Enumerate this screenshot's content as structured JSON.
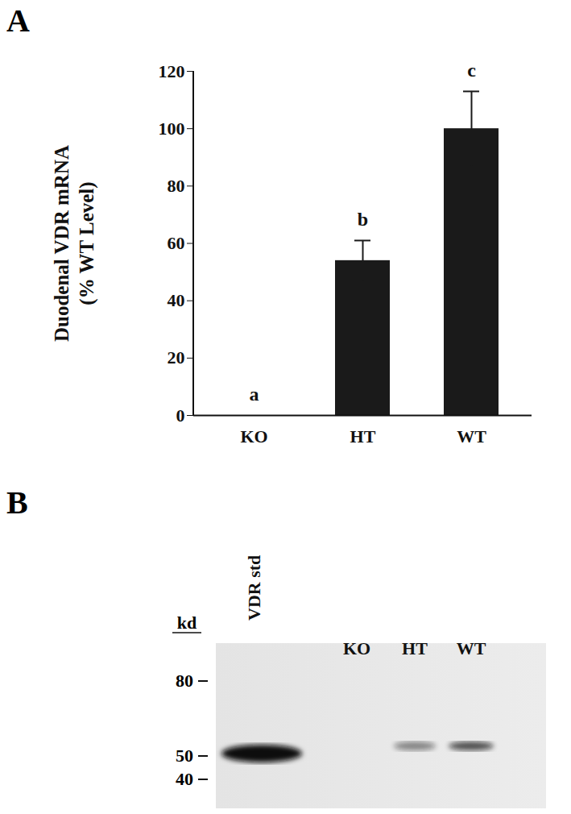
{
  "panel_labels": [
    "A",
    "B"
  ],
  "chart_data": {
    "type": "bar",
    "categories": [
      "KO",
      "HT",
      "WT"
    ],
    "values": [
      0,
      54,
      100
    ],
    "errors": [
      0,
      7,
      13
    ],
    "annotations": [
      "a",
      "b",
      "c"
    ],
    "ylabel": "Duodenal VDR mRNA\n(% WT Level)",
    "color": "#1a1a1a",
    "ylim": [
      0,
      120
    ],
    "yticks": [
      0,
      20,
      40,
      60,
      80,
      100,
      120
    ],
    "grid": false
  },
  "blot": {
    "lanes": [
      "VDR std",
      "KO",
      "HT",
      "WT"
    ],
    "marker_unit": "kd",
    "markers": [
      80,
      50,
      40
    ],
    "bands": [
      {
        "lane": "VDR std",
        "kd": 51
      },
      {
        "lane": "HT",
        "kd": 54
      },
      {
        "lane": "WT",
        "kd": 54
      }
    ]
  }
}
